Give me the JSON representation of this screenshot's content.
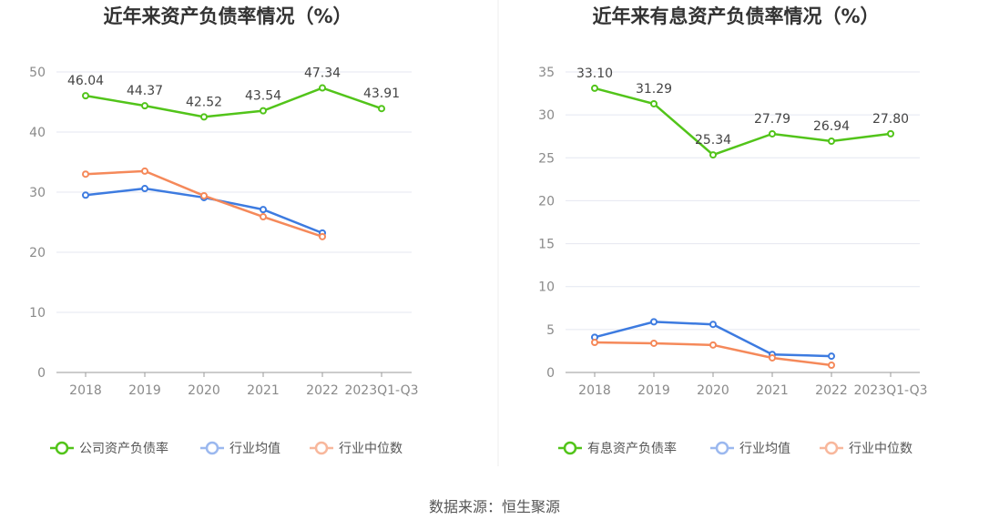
{
  "source": "数据来源：恒生聚源",
  "chart_data": [
    {
      "type": "line",
      "title": "近年来资产负债率情况（%）",
      "categories": [
        "2018",
        "2019",
        "2020",
        "2021",
        "2022",
        "2023Q1-Q3"
      ],
      "ylim": [
        0,
        50
      ],
      "yticks": [
        0,
        10,
        20,
        30,
        40,
        50
      ],
      "grid": true,
      "legend_position": "bottom",
      "series": [
        {
          "name": "公司资产负债率",
          "color": "#52c41a",
          "values": [
            46.04,
            44.37,
            42.52,
            43.54,
            47.34,
            43.91
          ],
          "labels": [
            "46.04",
            "44.37",
            "42.52",
            "43.54",
            "47.34",
            "43.91"
          ]
        },
        {
          "name": "行业均值",
          "color": "#3d7be0",
          "values": [
            29.5,
            30.6,
            29.1,
            27.1,
            23.2,
            null
          ]
        },
        {
          "name": "行业中位数",
          "color": "#f5895a",
          "values": [
            33.0,
            33.5,
            29.4,
            25.9,
            22.6,
            null
          ]
        }
      ]
    },
    {
      "type": "line",
      "title": "近年来有息资产负债率情况（%）",
      "categories": [
        "2018",
        "2019",
        "2020",
        "2021",
        "2022",
        "2023Q1-Q3"
      ],
      "ylim": [
        0,
        35
      ],
      "yticks": [
        0,
        5,
        10,
        15,
        20,
        25,
        30,
        35
      ],
      "grid": true,
      "legend_position": "bottom",
      "series": [
        {
          "name": "有息资产负债率",
          "color": "#52c41a",
          "values": [
            33.1,
            31.29,
            25.34,
            27.79,
            26.94,
            27.8
          ],
          "labels": [
            "33.10",
            "31.29",
            "25.34",
            "27.79",
            "26.94",
            "27.80"
          ]
        },
        {
          "name": "行业均值",
          "color": "#3d7be0",
          "values": [
            4.1,
            5.9,
            5.6,
            2.1,
            1.9,
            null
          ]
        },
        {
          "name": "行业中位数",
          "color": "#f5895a",
          "values": [
            3.5,
            3.4,
            3.2,
            1.7,
            0.85,
            null
          ]
        }
      ]
    }
  ]
}
